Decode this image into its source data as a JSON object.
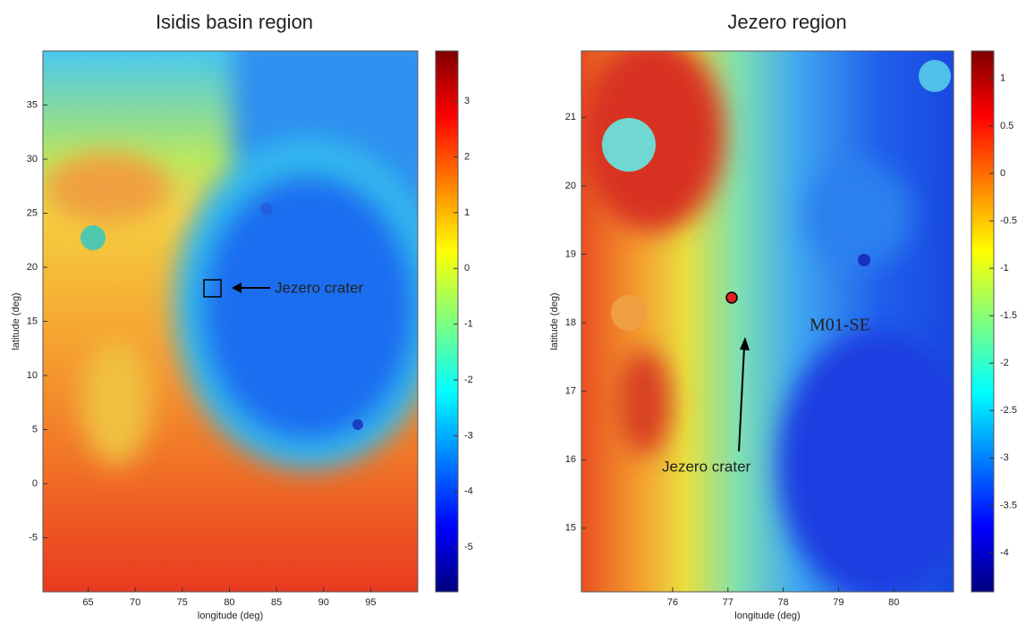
{
  "panels": [
    {
      "title": "Isidis basin region",
      "xlabel": "longitude (deg)",
      "ylabel": "latitude (deg)",
      "xlim": [
        60.2,
        100
      ],
      "ylim": [
        -10,
        40
      ],
      "xticks": [
        65,
        70,
        75,
        80,
        85,
        90,
        95
      ],
      "yticks": [
        -5,
        0,
        5,
        10,
        15,
        20,
        25,
        30,
        35
      ],
      "colorbar": {
        "lim": [
          -5.8,
          3.9
        ],
        "ticks": [
          -5,
          -4,
          -3,
          -2,
          -1,
          0,
          1,
          2,
          3
        ]
      },
      "annotations": [
        "Jezero crater"
      ]
    },
    {
      "title": "Jezero region",
      "xlabel": "longitude (deg)",
      "ylabel": "latitude (deg)",
      "xlim": [
        74.35,
        81.08
      ],
      "ylim": [
        14.07,
        21.97
      ],
      "xticks": [
        76,
        77,
        78,
        79,
        80
      ],
      "yticks": [
        15,
        16,
        17,
        18,
        19,
        20,
        21
      ],
      "colorbar": {
        "lim": [
          -4.41,
          1.29
        ],
        "ticks": [
          -4,
          -3.5,
          -3,
          -2.5,
          -2,
          -1.5,
          -1,
          -0.5,
          0,
          0.5,
          1
        ]
      },
      "annotations": [
        "Jezero crater",
        "M01-SE"
      ]
    }
  ]
}
